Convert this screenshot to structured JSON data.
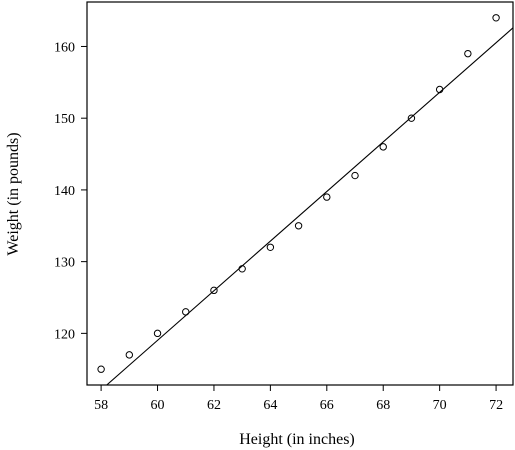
{
  "chart_data": {
    "type": "scatter",
    "title": "",
    "xlabel": "Height (in inches)",
    "ylabel": "Weight (in pounds)",
    "xlim": [
      57.5,
      72.6
    ],
    "ylim": [
      112.8,
      166.2
    ],
    "xticks": [
      58,
      60,
      62,
      64,
      66,
      68,
      70,
      72
    ],
    "xtick_labels": [
      "58",
      "60",
      "62",
      "64",
      "66",
      "68",
      "70",
      "72"
    ],
    "yticks": [
      120,
      130,
      140,
      150,
      160
    ],
    "ytick_labels": [
      "120",
      "130",
      "140",
      "150",
      "160"
    ],
    "grid": false,
    "series": [
      {
        "marker": "open-circle",
        "x": [
          58,
          59,
          60,
          61,
          62,
          63,
          64,
          65,
          66,
          67,
          68,
          69,
          70,
          71,
          72
        ],
        "y": [
          115,
          117,
          120,
          123,
          126,
          129,
          132,
          135,
          139,
          142,
          146,
          150,
          154,
          159,
          164
        ]
      }
    ],
    "fit_line": {
      "x": [
        58.2,
        72.6
      ],
      "y": [
        112.8,
        162.6
      ]
    },
    "colors": {
      "points": "#000000",
      "line": "#000000",
      "axes": "#000000"
    }
  }
}
